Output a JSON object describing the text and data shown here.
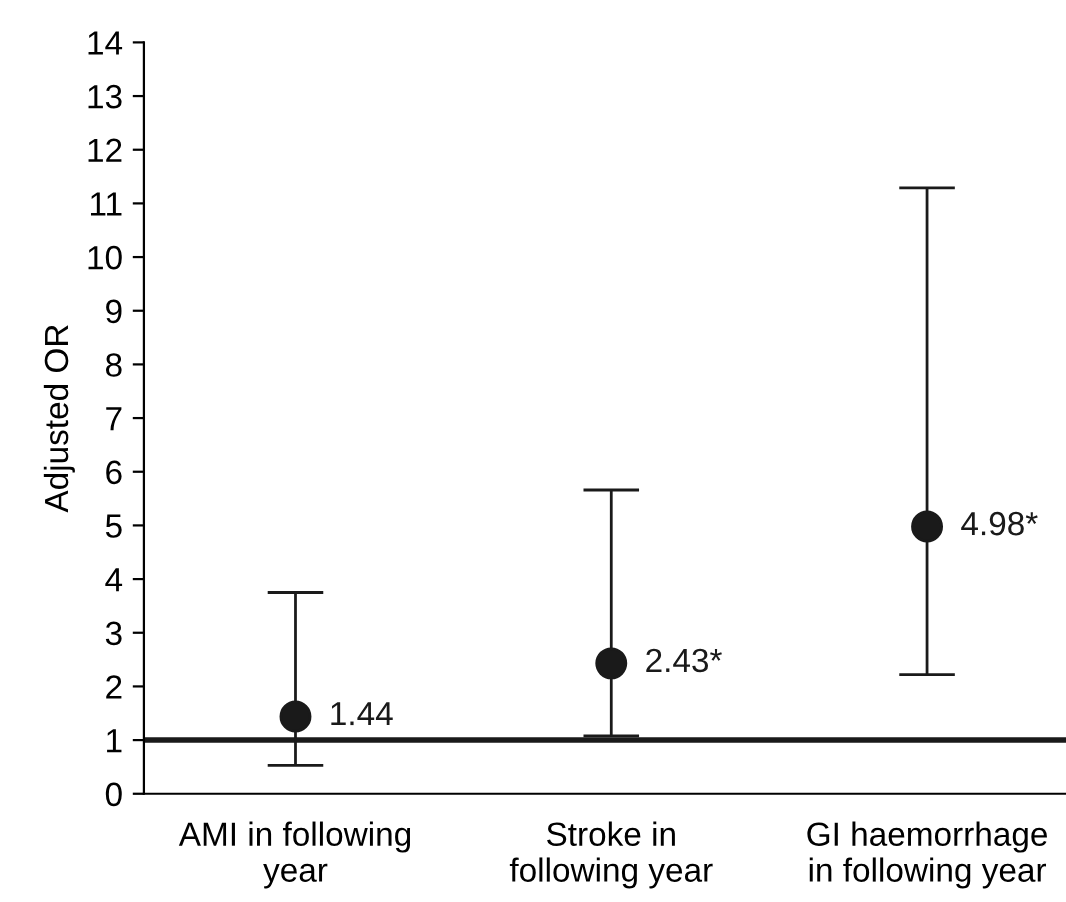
{
  "chart_data": {
    "type": "scatter",
    "ylabel": "Adjusted OR",
    "categories": [
      "AMI in following\nyear",
      "Stroke in\nfollowing year",
      "GI haemorrhage\nin following year"
    ],
    "series": [
      {
        "color": "#1a1a1a",
        "values": [
          1.44,
          2.43,
          4.98
        ],
        "errors": [
          [
            0.53,
            3.75
          ],
          [
            1.08,
            5.66
          ],
          [
            2.22,
            11.29
          ]
        ],
        "value_labels": [
          "1.44",
          "2.43*",
          "4.98*"
        ]
      }
    ],
    "ylim": [
      0,
      14
    ],
    "yticks": [
      0,
      1,
      2,
      3,
      4,
      5,
      6,
      7,
      8,
      9,
      10,
      11,
      12,
      13,
      14
    ],
    "ref_lines": [
      {
        "axis": "y",
        "value": 1,
        "color": "#1a1a1a",
        "line_style": "solid"
      }
    ],
    "marker": "circle",
    "grid": false
  }
}
